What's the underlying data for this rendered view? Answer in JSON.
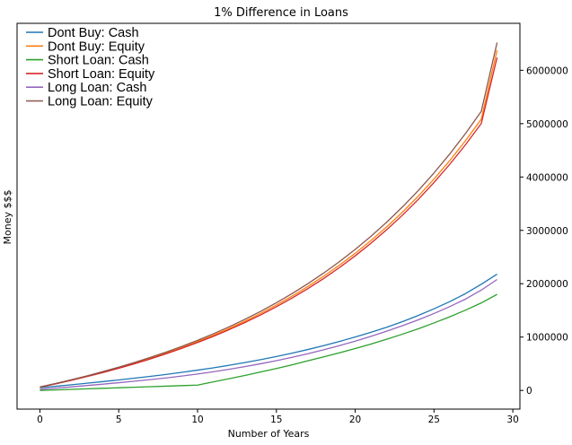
{
  "chart_data": {
    "type": "line",
    "title": "1% Difference in Loans",
    "xlabel": "Number of Years",
    "ylabel": "Money $$$",
    "xlim": [
      -1.45,
      30.45
    ],
    "ylim": [
      -350000,
      6880000
    ],
    "x_ticks": [
      0,
      5,
      10,
      15,
      20,
      25,
      30
    ],
    "y_ticks": [
      0,
      1000000,
      2000000,
      3000000,
      4000000,
      5000000,
      6000000
    ],
    "y_axis_side": "right",
    "grid": false,
    "legend_position": "top-left",
    "x": [
      0,
      1,
      2,
      3,
      4,
      5,
      6,
      7,
      8,
      9,
      10,
      11,
      12,
      13,
      14,
      15,
      16,
      17,
      18,
      19,
      20,
      21,
      22,
      23,
      24,
      25,
      26,
      27,
      28,
      29
    ],
    "series": [
      {
        "name": "Dont Buy: Cash",
        "color": "#1f77b4",
        "values": [
          50000,
          77500,
          106000,
          135500,
          166000,
          197000,
          230000,
          264000,
          300000,
          339000,
          380000,
          424000,
          471000,
          522000,
          577000,
          636000,
          699000,
          767000,
          840000,
          918000,
          1001000,
          1090000,
          1185000,
          1290000,
          1405000,
          1530000,
          1665000,
          1815000,
          1990000,
          2180000
        ]
      },
      {
        "name": "Dont Buy: Equity",
        "color": "#ff7f0e",
        "values": [
          60000,
          125000,
          193000,
          265000,
          340000,
          421000,
          508000,
          600000,
          698000,
          803000,
          915000,
          1034000,
          1161000,
          1298000,
          1444000,
          1601000,
          1768000,
          1948000,
          2141000,
          2348000,
          2570000,
          2809000,
          3066000,
          3343000,
          3641000,
          3962000,
          4308000,
          4681000,
          5084000,
          6380000
        ]
      },
      {
        "name": "Short Loan: Cash",
        "color": "#2ca02c",
        "values": [
          0,
          10000,
          20000,
          30000,
          40000,
          50000,
          60000,
          70000,
          80000,
          90000,
          100000,
          160000,
          220000,
          280000,
          345000,
          410000,
          480000,
          555000,
          630000,
          705000,
          785000,
          870000,
          960000,
          1055000,
          1155000,
          1265000,
          1380000,
          1505000,
          1640000,
          1800000
        ]
      },
      {
        "name": "Short Loan: Equity",
        "color": "#d62728",
        "values": [
          60000,
          123000,
          190000,
          261000,
          336000,
          416000,
          500000,
          590000,
          686000,
          789000,
          898000,
          1014000,
          1139000,
          1272000,
          1415000,
          1568000,
          1732000,
          1908000,
          2098000,
          2302000,
          2522000,
          2758000,
          3012000,
          3285000,
          3579000,
          3896000,
          4238000,
          4606000,
          5003000,
          6240000
        ]
      },
      {
        "name": "Long Loan: Cash",
        "color": "#9467bd",
        "values": [
          20000,
          43000,
          67000,
          92000,
          118000,
          145000,
          173000,
          203000,
          235000,
          270000,
          308000,
          350000,
          396000,
          446000,
          500000,
          558000,
          621000,
          689000,
          762000,
          840000,
          924000,
          1014000,
          1110000,
          1213000,
          1323000,
          1442000,
          1572000,
          1712000,
          1880000,
          2080000
        ]
      },
      {
        "name": "Long Loan: Equity",
        "color": "#8c564b",
        "values": [
          65000,
          131000,
          201000,
          275000,
          353000,
          436000,
          524000,
          618000,
          718000,
          825000,
          939000,
          1061000,
          1192000,
          1332000,
          1482000,
          1643000,
          1816000,
          2001000,
          2200000,
          2414000,
          2643000,
          2889000,
          3154000,
          3439000,
          3746000,
          4076000,
          4432000,
          4816000,
          5231000,
          6520000
        ]
      }
    ]
  }
}
